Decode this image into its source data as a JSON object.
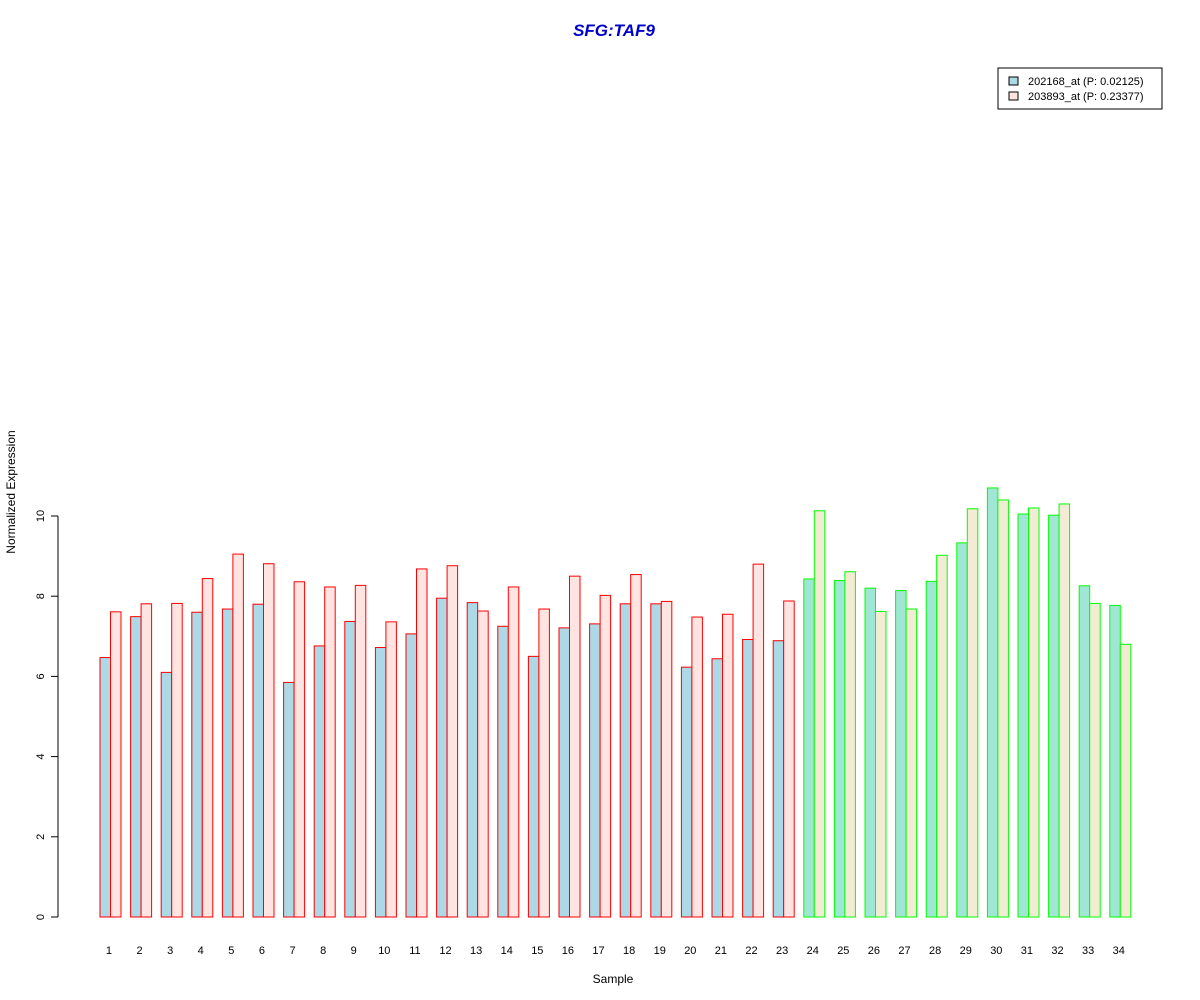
{
  "chart_data": {
    "type": "bar",
    "title": "SFG:TAF9",
    "xlabel": "Sample",
    "ylabel": "Normalized Expression",
    "ylim": [
      0,
      10.8
    ],
    "yticks": [
      0,
      2,
      4,
      6,
      8,
      10
    ],
    "categories": [
      "1",
      "2",
      "3",
      "4",
      "5",
      "6",
      "7",
      "8",
      "9",
      "10",
      "11",
      "12",
      "13",
      "14",
      "15",
      "16",
      "17",
      "18",
      "19",
      "20",
      "21",
      "22",
      "23",
      "24",
      "25",
      "26",
      "27",
      "28",
      "29",
      "30",
      "31",
      "32",
      "33",
      "34"
    ],
    "groups": [
      {
        "range": [
          1,
          23
        ],
        "border": "#ff0000",
        "fills": [
          "#add8e6",
          "#ffe4e1"
        ]
      },
      {
        "range": [
          24,
          34
        ],
        "border": "#00ff00",
        "fills": [
          "#a0e6d4",
          "#f3ecd4"
        ]
      }
    ],
    "series": [
      {
        "name": "202168_at (P: 0.02125)",
        "legend_fill": "#add8e6",
        "values": [
          6.47,
          7.49,
          6.1,
          7.6,
          7.68,
          7.8,
          5.85,
          6.76,
          7.37,
          6.72,
          7.06,
          7.95,
          7.84,
          7.25,
          6.5,
          7.21,
          7.31,
          7.81,
          7.81,
          6.23,
          6.44,
          6.92,
          6.89,
          8.43,
          8.39,
          8.2,
          8.14,
          8.37,
          9.33,
          10.7,
          10.05,
          10.02,
          8.26,
          7.77
        ]
      },
      {
        "name": "203893_at (P: 0.23377)",
        "legend_fill": "#ffe4e1",
        "values": [
          7.61,
          7.81,
          7.82,
          8.44,
          9.05,
          8.81,
          8.36,
          8.23,
          8.27,
          7.36,
          8.68,
          8.76,
          7.63,
          8.23,
          7.68,
          8.5,
          8.02,
          8.54,
          7.87,
          7.48,
          7.55,
          8.8,
          7.88,
          10.13,
          8.61,
          7.62,
          7.68,
          9.02,
          10.18,
          10.4,
          10.2,
          10.3,
          7.82,
          6.8
        ]
      }
    ],
    "legend_position": "top-right",
    "grid": false
  }
}
